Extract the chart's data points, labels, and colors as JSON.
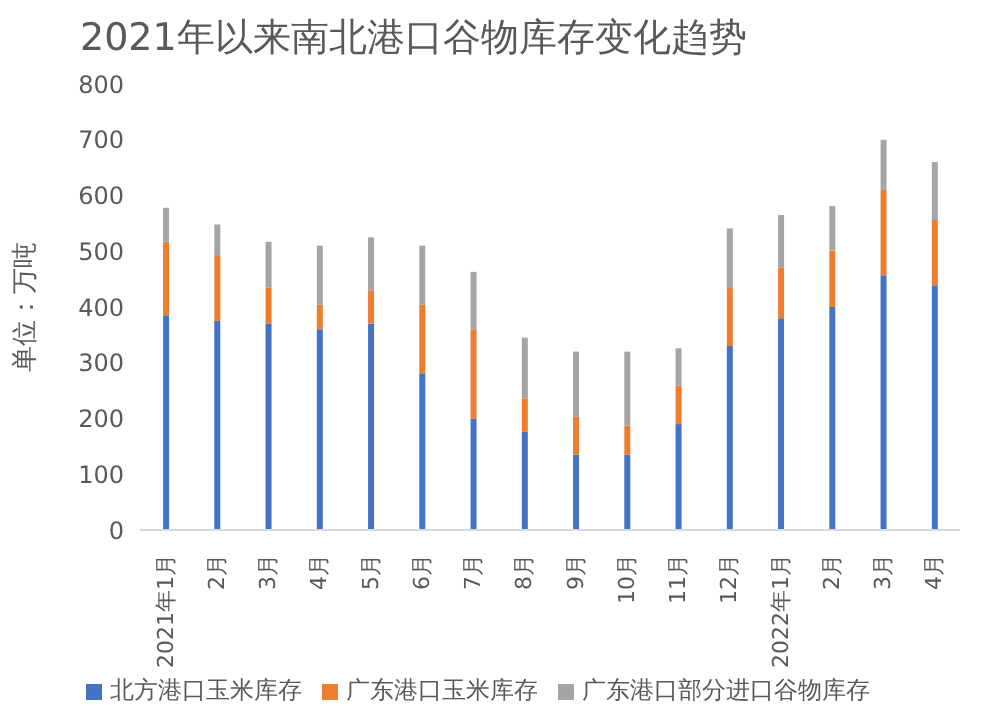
{
  "chart_data": {
    "type": "bar",
    "title": "2021年以来南北港口谷物库存变化趋势",
    "ylabel": "单位：万吨",
    "categories": [
      "2021年1月",
      "2月",
      "3月",
      "4月",
      "5月",
      "6月",
      "7月",
      "8月",
      "9月",
      "10月",
      "11月",
      "12月",
      "2022年1月",
      "2月",
      "3月",
      "4月"
    ],
    "series": [
      {
        "name": "北方港口玉米库存",
        "color": "#4472c4",
        "values": [
          385,
          375,
          370,
          360,
          370,
          281,
          200,
          176,
          135,
          135,
          190,
          330,
          380,
          400,
          457,
          439
        ]
      },
      {
        "name": "广东港口玉米库存",
        "color": "#ed7d31",
        "values": [
          132,
          118,
          65,
          44,
          60,
          123,
          160,
          60,
          68,
          52,
          69,
          104,
          91,
          101,
          153,
          117
        ]
      },
      {
        "name": "广东港口部分进口谷物库存",
        "color": "#a5a5a5",
        "values": [
          61,
          55,
          82,
          106,
          95,
          106,
          103,
          109,
          117,
          133,
          67,
          107,
          94,
          80,
          90,
          104
        ]
      }
    ],
    "stacked": true,
    "ylim": [
      0,
      800
    ],
    "yticks": [
      0,
      100,
      200,
      300,
      400,
      500,
      600,
      700,
      800
    ],
    "grid": false,
    "legend": "bottom"
  }
}
